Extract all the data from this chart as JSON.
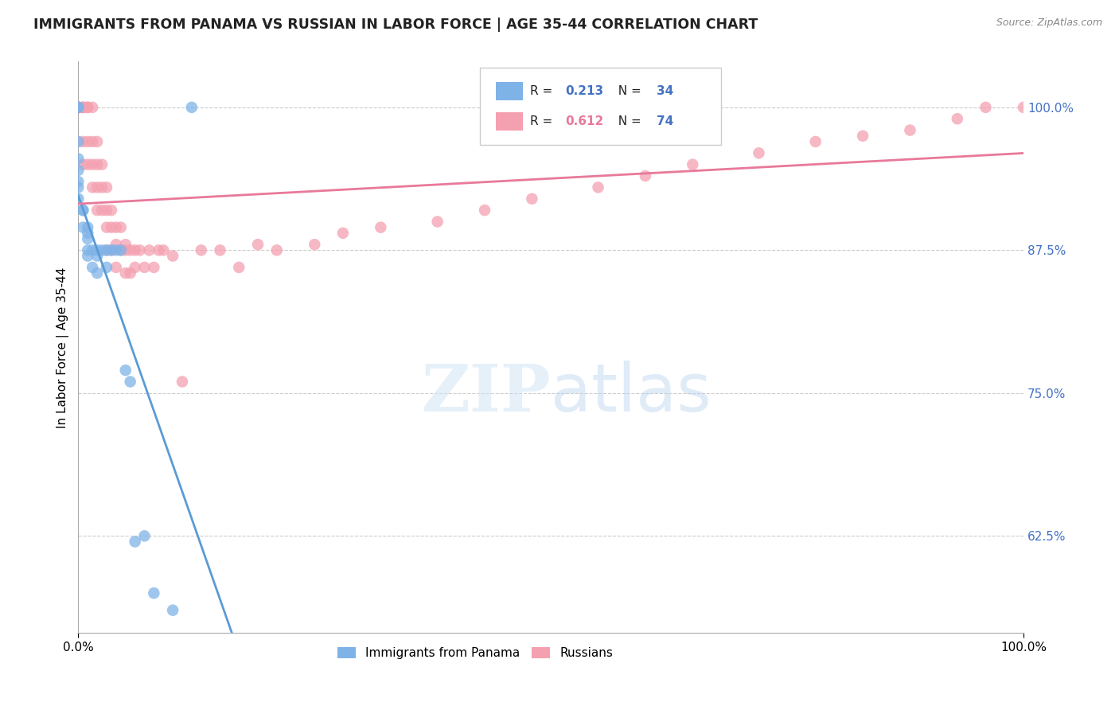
{
  "title": "IMMIGRANTS FROM PANAMA VS RUSSIAN IN LABOR FORCE | AGE 35-44 CORRELATION CHART",
  "source": "Source: ZipAtlas.com",
  "ylabel": "In Labor Force | Age 35-44",
  "ytick_labels": [
    "100.0%",
    "87.5%",
    "75.0%",
    "62.5%"
  ],
  "ytick_values": [
    1.0,
    0.875,
    0.75,
    0.625
  ],
  "xlim": [
    0.0,
    1.0
  ],
  "ylim": [
    0.54,
    1.04
  ],
  "color_panama": "#7fb3e8",
  "color_russian": "#f4a0b0",
  "color_panama_line": "#5b9bd5",
  "color_russian_line": "#e8799a",
  "R_panama": 0.213,
  "N_panama": 34,
  "R_russian": 0.612,
  "N_russian": 74,
  "panama_x": [
    0.0,
    0.0,
    0.0,
    0.0,
    0.0,
    0.0,
    0.0,
    0.0,
    0.005,
    0.005,
    0.005,
    0.01,
    0.01,
    0.01,
    0.01,
    0.01,
    0.015,
    0.015,
    0.02,
    0.02,
    0.02,
    0.025,
    0.03,
    0.03,
    0.035,
    0.04,
    0.045,
    0.05,
    0.055,
    0.06,
    0.07,
    0.08,
    0.1,
    0.12
  ],
  "panama_y": [
    1.0,
    1.0,
    0.97,
    0.955,
    0.945,
    0.935,
    0.93,
    0.92,
    0.91,
    0.91,
    0.895,
    0.895,
    0.89,
    0.885,
    0.875,
    0.87,
    0.875,
    0.86,
    0.875,
    0.87,
    0.855,
    0.875,
    0.875,
    0.86,
    0.875,
    0.875,
    0.875,
    0.77,
    0.76,
    0.62,
    0.625,
    0.575,
    0.56,
    1.0
  ],
  "russian_x": [
    0.0,
    0.0,
    0.0,
    0.0,
    0.0,
    0.0,
    0.005,
    0.005,
    0.005,
    0.005,
    0.005,
    0.01,
    0.01,
    0.01,
    0.01,
    0.015,
    0.015,
    0.015,
    0.015,
    0.02,
    0.02,
    0.02,
    0.02,
    0.025,
    0.025,
    0.025,
    0.03,
    0.03,
    0.03,
    0.03,
    0.035,
    0.035,
    0.035,
    0.04,
    0.04,
    0.04,
    0.045,
    0.045,
    0.05,
    0.05,
    0.05,
    0.055,
    0.055,
    0.06,
    0.06,
    0.065,
    0.07,
    0.075,
    0.08,
    0.085,
    0.09,
    0.1,
    0.11,
    0.13,
    0.15,
    0.17,
    0.19,
    0.21,
    0.25,
    0.28,
    0.32,
    0.38,
    0.43,
    0.48,
    0.55,
    0.6,
    0.65,
    0.72,
    0.78,
    0.83,
    0.88,
    0.93,
    0.96,
    1.0
  ],
  "russian_y": [
    1.0,
    1.0,
    1.0,
    1.0,
    1.0,
    1.0,
    1.0,
    1.0,
    1.0,
    0.97,
    0.95,
    1.0,
    1.0,
    0.97,
    0.95,
    1.0,
    0.97,
    0.95,
    0.93,
    0.97,
    0.95,
    0.93,
    0.91,
    0.95,
    0.93,
    0.91,
    0.93,
    0.91,
    0.895,
    0.875,
    0.91,
    0.895,
    0.875,
    0.895,
    0.88,
    0.86,
    0.895,
    0.875,
    0.88,
    0.875,
    0.855,
    0.875,
    0.855,
    0.875,
    0.86,
    0.875,
    0.86,
    0.875,
    0.86,
    0.875,
    0.875,
    0.87,
    0.76,
    0.875,
    0.875,
    0.86,
    0.88,
    0.875,
    0.88,
    0.89,
    0.895,
    0.9,
    0.91,
    0.92,
    0.93,
    0.94,
    0.95,
    0.96,
    0.97,
    0.975,
    0.98,
    0.99,
    1.0,
    1.0
  ]
}
